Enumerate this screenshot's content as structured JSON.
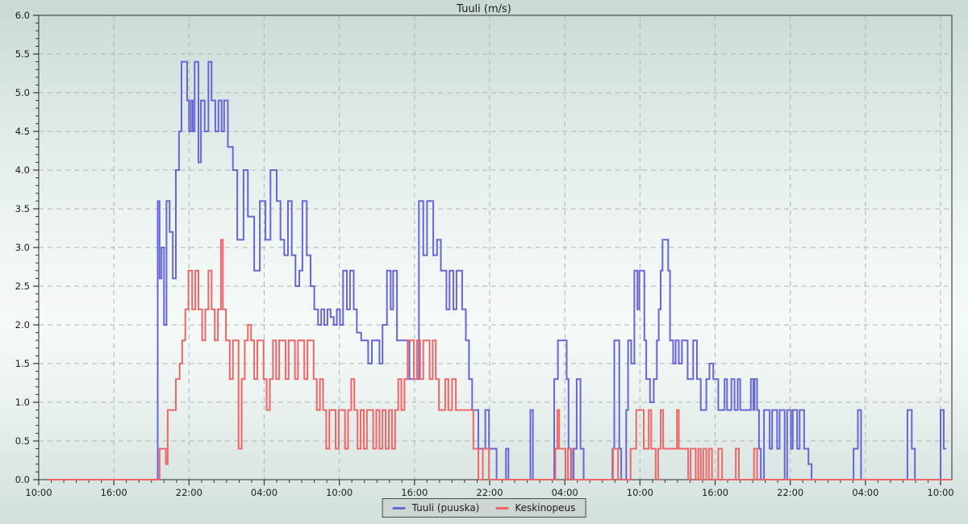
{
  "chart_data": {
    "type": "line",
    "subtype": "step-after",
    "title": "Tuuli (m/s)",
    "xlabel": "",
    "ylabel": "",
    "ylim": [
      0,
      6
    ],
    "y_major_step": 0.5,
    "y_minor_step": 0.1,
    "y_tick_labels": [
      "0.0",
      "0.5",
      "1.0",
      "1.5",
      "2.0",
      "2.5",
      "3.0",
      "3.5",
      "4.0",
      "4.5",
      "5.0",
      "5.5",
      "6.0"
    ],
    "x_range_hours": [
      0,
      72.9
    ],
    "x_major_step_hours": 6,
    "x_minor_step_hours": 1,
    "x_tick_labels": [
      "10:00",
      "16:00",
      "22:00",
      "04:00",
      "10:00",
      "16:00",
      "22:00",
      "04:00",
      "10:00",
      "16:00",
      "22:00",
      "04:00",
      "10:00"
    ],
    "grid": "dashed",
    "legend": {
      "position": "bottom-center",
      "entries": [
        {
          "label": "Tuuli (puuska)",
          "color": "#6666d9"
        },
        {
          "label": "Keskinopeus",
          "color": "#f06565"
        }
      ]
    },
    "series": [
      {
        "name": "Tuuli (puuska)",
        "color": "#6666d9",
        "step_points": [
          [
            0.7,
            0
          ],
          [
            9.5,
            3.6
          ],
          [
            9.65,
            2.6
          ],
          [
            9.8,
            3.0
          ],
          [
            10.0,
            2.0
          ],
          [
            10.2,
            3.6
          ],
          [
            10.45,
            3.2
          ],
          [
            10.7,
            2.6
          ],
          [
            10.95,
            4.0
          ],
          [
            11.2,
            4.5
          ],
          [
            11.4,
            5.4
          ],
          [
            11.85,
            4.9
          ],
          [
            12.0,
            4.5
          ],
          [
            12.15,
            4.9
          ],
          [
            12.3,
            4.5
          ],
          [
            12.45,
            5.4
          ],
          [
            12.75,
            4.1
          ],
          [
            12.95,
            4.9
          ],
          [
            13.25,
            4.5
          ],
          [
            13.55,
            5.4
          ],
          [
            13.8,
            4.9
          ],
          [
            14.1,
            4.5
          ],
          [
            14.35,
            4.9
          ],
          [
            14.6,
            4.5
          ],
          [
            14.8,
            4.9
          ],
          [
            15.1,
            4.3
          ],
          [
            15.5,
            4.0
          ],
          [
            15.85,
            3.1
          ],
          [
            16.35,
            4.0
          ],
          [
            16.7,
            3.4
          ],
          [
            17.2,
            2.7
          ],
          [
            17.65,
            3.6
          ],
          [
            18.1,
            3.1
          ],
          [
            18.5,
            4.0
          ],
          [
            19.0,
            3.6
          ],
          [
            19.3,
            3.1
          ],
          [
            19.6,
            2.9
          ],
          [
            19.9,
            3.6
          ],
          [
            20.2,
            2.9
          ],
          [
            20.5,
            2.5
          ],
          [
            20.8,
            2.7
          ],
          [
            21.05,
            3.6
          ],
          [
            21.4,
            2.9
          ],
          [
            21.7,
            2.5
          ],
          [
            22.0,
            2.2
          ],
          [
            22.3,
            2.0
          ],
          [
            22.55,
            2.2
          ],
          [
            22.8,
            2.0
          ],
          [
            23.05,
            2.2
          ],
          [
            23.3,
            2.1
          ],
          [
            23.55,
            2.0
          ],
          [
            23.8,
            2.2
          ],
          [
            24.05,
            2.0
          ],
          [
            24.3,
            2.7
          ],
          [
            24.6,
            2.2
          ],
          [
            24.85,
            2.7
          ],
          [
            25.15,
            2.2
          ],
          [
            25.4,
            1.9
          ],
          [
            25.75,
            1.8
          ],
          [
            26.3,
            1.5
          ],
          [
            26.6,
            1.8
          ],
          [
            27.2,
            1.5
          ],
          [
            27.45,
            2.0
          ],
          [
            27.8,
            2.7
          ],
          [
            28.1,
            2.2
          ],
          [
            28.3,
            2.7
          ],
          [
            28.6,
            1.8
          ],
          [
            29.6,
            1.3
          ],
          [
            30.35,
            3.6
          ],
          [
            30.7,
            2.9
          ],
          [
            31.0,
            3.6
          ],
          [
            31.5,
            2.9
          ],
          [
            31.8,
            3.1
          ],
          [
            32.1,
            2.7
          ],
          [
            32.55,
            2.2
          ],
          [
            32.8,
            2.7
          ],
          [
            33.1,
            2.2
          ],
          [
            33.35,
            2.7
          ],
          [
            33.8,
            2.2
          ],
          [
            34.1,
            1.8
          ],
          [
            34.35,
            1.3
          ],
          [
            34.6,
            0.9
          ],
          [
            35.1,
            0.4
          ],
          [
            35.65,
            0.9
          ],
          [
            35.95,
            0.4
          ],
          [
            36.55,
            0
          ],
          [
            37.3,
            0.4
          ],
          [
            37.5,
            0
          ],
          [
            39.25,
            0.9
          ],
          [
            39.45,
            0
          ],
          [
            41.15,
            1.3
          ],
          [
            41.45,
            1.8
          ],
          [
            42.15,
            1.3
          ],
          [
            42.3,
            0.4
          ],
          [
            42.5,
            0
          ],
          [
            42.7,
            0.4
          ],
          [
            42.95,
            1.3
          ],
          [
            43.25,
            0.4
          ],
          [
            43.5,
            0
          ],
          [
            45.8,
            0.4
          ],
          [
            45.95,
            1.8
          ],
          [
            46.35,
            0.4
          ],
          [
            46.5,
            0
          ],
          [
            46.9,
            0.9
          ],
          [
            47.05,
            1.8
          ],
          [
            47.3,
            1.5
          ],
          [
            47.55,
            2.7
          ],
          [
            47.8,
            2.2
          ],
          [
            47.95,
            2.7
          ],
          [
            48.35,
            1.8
          ],
          [
            48.5,
            1.3
          ],
          [
            48.8,
            1.0
          ],
          [
            49.1,
            1.3
          ],
          [
            49.35,
            1.8
          ],
          [
            49.5,
            2.2
          ],
          [
            49.65,
            2.7
          ],
          [
            49.8,
            3.1
          ],
          [
            50.25,
            2.7
          ],
          [
            50.4,
            1.8
          ],
          [
            50.65,
            1.5
          ],
          [
            50.85,
            1.8
          ],
          [
            51.1,
            1.5
          ],
          [
            51.35,
            1.8
          ],
          [
            51.8,
            1.3
          ],
          [
            52.25,
            1.8
          ],
          [
            52.55,
            1.3
          ],
          [
            52.85,
            0.9
          ],
          [
            53.3,
            1.3
          ],
          [
            53.55,
            1.5
          ],
          [
            53.85,
            1.3
          ],
          [
            54.25,
            0.9
          ],
          [
            54.75,
            1.3
          ],
          [
            54.95,
            0.9
          ],
          [
            55.3,
            1.3
          ],
          [
            55.55,
            0.9
          ],
          [
            55.8,
            1.3
          ],
          [
            56.0,
            0.9
          ],
          [
            56.85,
            1.3
          ],
          [
            57.05,
            0.9
          ],
          [
            57.15,
            1.3
          ],
          [
            57.35,
            0.9
          ],
          [
            57.5,
            0.4
          ],
          [
            57.65,
            0
          ],
          [
            57.9,
            0.9
          ],
          [
            58.35,
            0.4
          ],
          [
            58.55,
            0.9
          ],
          [
            58.95,
            0.4
          ],
          [
            59.15,
            0.9
          ],
          [
            59.55,
            0
          ],
          [
            59.75,
            0.9
          ],
          [
            60.05,
            0.4
          ],
          [
            60.2,
            0.9
          ],
          [
            60.55,
            0.4
          ],
          [
            60.75,
            0.9
          ],
          [
            61.1,
            0.4
          ],
          [
            61.45,
            0.2
          ],
          [
            61.7,
            0
          ],
          [
            65.05,
            0.4
          ],
          [
            65.4,
            0.9
          ],
          [
            65.65,
            0
          ],
          [
            69.35,
            0.9
          ],
          [
            69.7,
            0.4
          ],
          [
            69.95,
            0
          ],
          [
            72.0,
            0.9
          ],
          [
            72.25,
            0.4
          ],
          [
            72.45,
            0.4
          ]
        ]
      },
      {
        "name": "Keskinopeus",
        "color": "#f06565",
        "step_points": [
          [
            0.7,
            0
          ],
          [
            9.65,
            0.4
          ],
          [
            10.15,
            0.2
          ],
          [
            10.3,
            0.9
          ],
          [
            10.95,
            1.3
          ],
          [
            11.25,
            1.5
          ],
          [
            11.45,
            1.8
          ],
          [
            11.7,
            2.2
          ],
          [
            11.95,
            2.7
          ],
          [
            12.25,
            2.2
          ],
          [
            12.5,
            2.7
          ],
          [
            12.75,
            2.2
          ],
          [
            13.05,
            1.8
          ],
          [
            13.3,
            2.2
          ],
          [
            13.55,
            2.7
          ],
          [
            13.8,
            2.2
          ],
          [
            14.05,
            1.8
          ],
          [
            14.3,
            2.2
          ],
          [
            14.55,
            3.1
          ],
          [
            14.7,
            2.2
          ],
          [
            14.95,
            1.8
          ],
          [
            15.25,
            1.3
          ],
          [
            15.5,
            1.8
          ],
          [
            15.95,
            0.4
          ],
          [
            16.2,
            1.3
          ],
          [
            16.45,
            1.8
          ],
          [
            16.7,
            2.0
          ],
          [
            16.95,
            1.8
          ],
          [
            17.2,
            1.3
          ],
          [
            17.45,
            1.8
          ],
          [
            17.95,
            1.3
          ],
          [
            18.2,
            0.9
          ],
          [
            18.45,
            1.3
          ],
          [
            18.7,
            1.8
          ],
          [
            18.95,
            1.3
          ],
          [
            19.2,
            1.8
          ],
          [
            19.7,
            1.3
          ],
          [
            19.95,
            1.8
          ],
          [
            20.45,
            1.3
          ],
          [
            20.7,
            1.8
          ],
          [
            21.2,
            1.3
          ],
          [
            21.45,
            1.8
          ],
          [
            21.95,
            1.3
          ],
          [
            22.2,
            0.9
          ],
          [
            22.45,
            1.3
          ],
          [
            22.7,
            0.9
          ],
          [
            22.95,
            0.4
          ],
          [
            23.2,
            0.9
          ],
          [
            23.7,
            0.4
          ],
          [
            23.95,
            0.9
          ],
          [
            24.45,
            0.4
          ],
          [
            24.7,
            0.9
          ],
          [
            24.95,
            1.3
          ],
          [
            25.2,
            0.9
          ],
          [
            25.45,
            0.4
          ],
          [
            25.7,
            0.9
          ],
          [
            25.95,
            0.4
          ],
          [
            26.2,
            0.9
          ],
          [
            26.7,
            0.4
          ],
          [
            26.95,
            0.9
          ],
          [
            27.2,
            0.4
          ],
          [
            27.45,
            0.9
          ],
          [
            27.7,
            0.4
          ],
          [
            27.95,
            0.9
          ],
          [
            28.2,
            0.4
          ],
          [
            28.45,
            0.9
          ],
          [
            28.7,
            1.3
          ],
          [
            28.95,
            0.9
          ],
          [
            29.2,
            1.3
          ],
          [
            29.45,
            1.8
          ],
          [
            29.95,
            1.3
          ],
          [
            30.2,
            1.8
          ],
          [
            30.45,
            1.3
          ],
          [
            30.7,
            1.8
          ],
          [
            31.2,
            1.3
          ],
          [
            31.45,
            1.8
          ],
          [
            31.7,
            1.3
          ],
          [
            31.95,
            0.9
          ],
          [
            32.45,
            1.3
          ],
          [
            32.7,
            0.9
          ],
          [
            33.0,
            1.3
          ],
          [
            33.3,
            0.9
          ],
          [
            34.7,
            0.4
          ],
          [
            35.1,
            0
          ],
          [
            35.45,
            0.4
          ],
          [
            35.95,
            0
          ],
          [
            41.25,
            0.4
          ],
          [
            41.4,
            0.9
          ],
          [
            41.55,
            0.4
          ],
          [
            42.05,
            0
          ],
          [
            42.25,
            0.4
          ],
          [
            42.55,
            0
          ],
          [
            45.85,
            0.4
          ],
          [
            46.25,
            0
          ],
          [
            47.25,
            0.4
          ],
          [
            47.7,
            0.9
          ],
          [
            48.3,
            0.4
          ],
          [
            48.7,
            0.9
          ],
          [
            48.9,
            0.4
          ],
          [
            49.25,
            0
          ],
          [
            49.45,
            0.4
          ],
          [
            49.65,
            0.9
          ],
          [
            49.85,
            0.4
          ],
          [
            50.95,
            0.9
          ],
          [
            51.1,
            0.4
          ],
          [
            51.85,
            0
          ],
          [
            52.05,
            0.4
          ],
          [
            52.45,
            0
          ],
          [
            52.65,
            0.4
          ],
          [
            52.85,
            0
          ],
          [
            53.05,
            0.4
          ],
          [
            53.3,
            0
          ],
          [
            53.5,
            0.4
          ],
          [
            53.75,
            0
          ],
          [
            54.25,
            0.4
          ],
          [
            54.55,
            0
          ],
          [
            55.65,
            0.4
          ],
          [
            55.9,
            0
          ],
          [
            57.1,
            0.4
          ],
          [
            57.35,
            0
          ],
          [
            72.9,
            0
          ]
        ]
      }
    ],
    "style_colors": {
      "plot_border": "#4a4a4a",
      "grid": "#b3b3b3",
      "tick": "#333333",
      "text": "#1c1c1c",
      "legend_bg": "#ccd5d2"
    }
  }
}
